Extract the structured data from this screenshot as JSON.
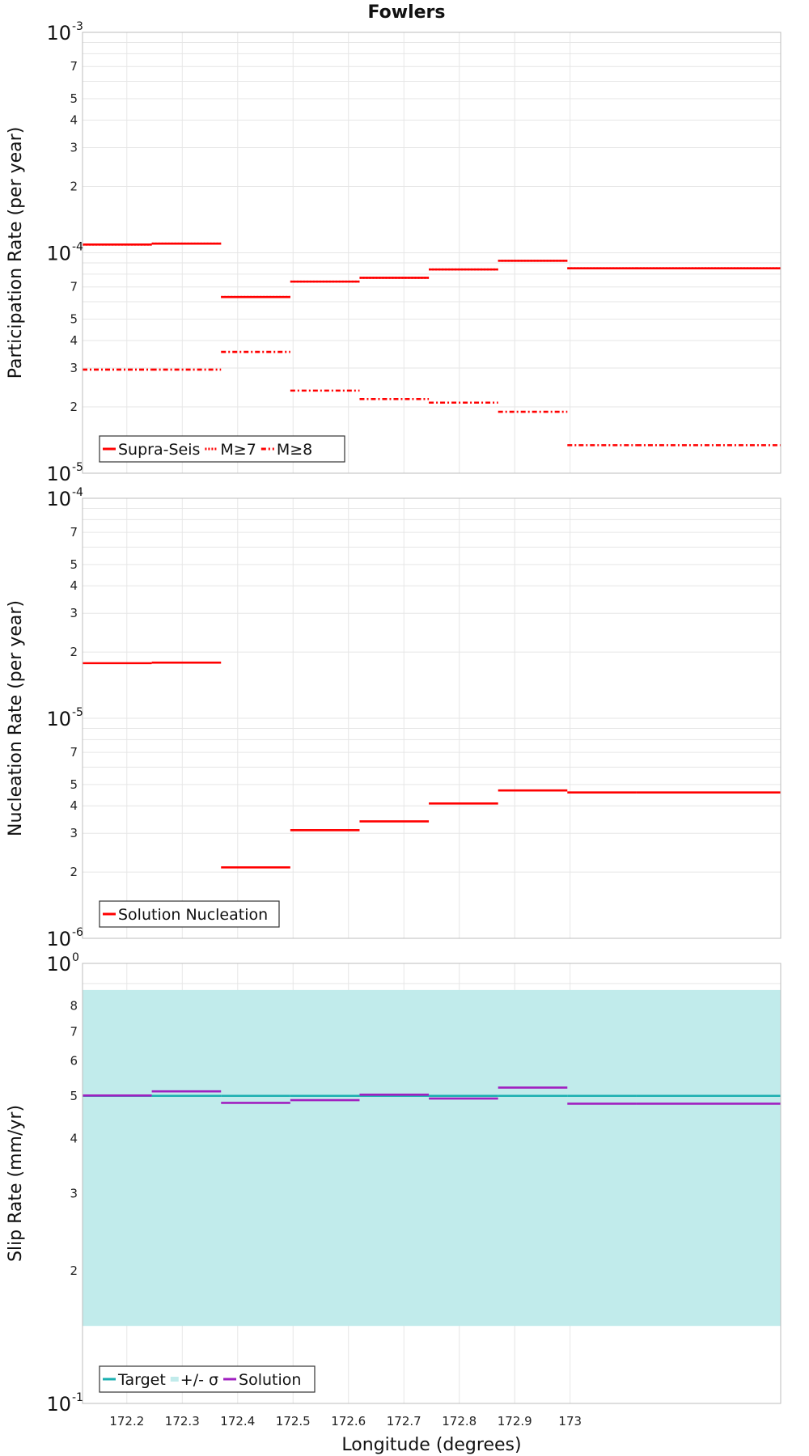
{
  "chart_data": [
    {
      "type": "line",
      "title": "Fowlers",
      "xlabel": "Longitude (degrees)",
      "ylabel": "Participation Rate (per year)",
      "yscale": "log",
      "ylim": [
        1e-05,
        0.001
      ],
      "xlim": [
        172.12,
        173.38
      ],
      "x_edges": [
        172.12,
        172.245,
        172.37,
        172.495,
        172.62,
        172.745,
        172.87,
        172.995,
        173.12,
        173.38
      ],
      "series": [
        {
          "name": "Supra-Seis",
          "style": "solid",
          "color": "#ff0000",
          "values": [
            0.000109,
            0.00011,
            6.3e-05,
            7.4e-05,
            7.7e-05,
            8.4e-05,
            9.2e-05,
            8.5e-05,
            8.5e-05
          ]
        },
        {
          "name": "M≥7",
          "style": "dotted",
          "color": "#ff0000",
          "values": [
            0.000109,
            0.00011,
            6.3e-05,
            7.4e-05,
            7.7e-05,
            8.4e-05,
            9.2e-05,
            8.5e-05,
            8.5e-05
          ]
        },
        {
          "name": "M≥8",
          "style": "dashdot",
          "color": "#ff0000",
          "values": [
            2.95e-05,
            2.95e-05,
            3.55e-05,
            2.37e-05,
            2.17e-05,
            2.09e-05,
            1.9e-05,
            1.34e-05,
            1.34e-05
          ]
        }
      ],
      "yticks_major": [
        {
          "value": 0.001,
          "mantissa": "10",
          "exp": "-3"
        },
        {
          "value": 0.0001,
          "mantissa": "10",
          "exp": "-4"
        },
        {
          "value": 1e-05,
          "mantissa": "10",
          "exp": "-5"
        }
      ],
      "yticks_minor_labels": [
        "7",
        "5",
        "4",
        "3",
        "2"
      ],
      "legend": "bottom-left"
    },
    {
      "type": "line",
      "ylabel": "Nucleation Rate (per year)",
      "yscale": "log",
      "ylim": [
        1e-06,
        0.0001
      ],
      "x_edges": [
        172.12,
        172.245,
        172.37,
        172.495,
        172.62,
        172.745,
        172.87,
        172.995,
        173.12,
        173.38
      ],
      "series": [
        {
          "name": "Solution Nucleation",
          "style": "solid",
          "color": "#ff0000",
          "values": [
            1.78e-05,
            1.79e-05,
            2.1e-06,
            3.1e-06,
            3.4e-06,
            4.1e-06,
            4.7e-06,
            4.6e-06,
            4.6e-06
          ]
        }
      ],
      "yticks_major": [
        {
          "value": 0.0001,
          "mantissa": "10",
          "exp": "-4"
        },
        {
          "value": 1e-05,
          "mantissa": "10",
          "exp": "-5"
        },
        {
          "value": 1e-06,
          "mantissa": "10",
          "exp": "-6"
        }
      ],
      "yticks_minor_labels": [
        "7",
        "5",
        "4",
        "3",
        "2"
      ],
      "legend": "bottom-left"
    },
    {
      "type": "line",
      "ylabel": "Slip Rate (mm/yr)",
      "xlabel": "Longitude (degrees)",
      "yscale": "log",
      "ylim": [
        0.1,
        1.0
      ],
      "x_edges": [
        172.12,
        172.245,
        172.37,
        172.495,
        172.62,
        172.745,
        172.87,
        172.995,
        173.12,
        173.38
      ],
      "band": {
        "name": "+/- σ",
        "low": 0.15,
        "high": 0.87,
        "color": "#c1ebeb"
      },
      "series": [
        {
          "name": "Target",
          "style": "solid",
          "color": "#1aafb0",
          "values": [
            0.5,
            0.5,
            0.5,
            0.5,
            0.5,
            0.5,
            0.5,
            0.5,
            0.5
          ]
        },
        {
          "name": "Solution",
          "style": "solid",
          "color": "#a020c0",
          "values": [
            0.501,
            0.512,
            0.482,
            0.489,
            0.503,
            0.493,
            0.522,
            0.48,
            0.48
          ]
        }
      ],
      "yticks_major": [
        {
          "value": 1.0,
          "mantissa": "10",
          "exp": "0"
        },
        {
          "value": 0.1,
          "mantissa": "10",
          "exp": "-1"
        }
      ],
      "yticks_minor_labels": [
        "8",
        "7",
        "6",
        "5",
        "4",
        "3",
        "2"
      ],
      "legend": "bottom-left"
    }
  ],
  "x_tick_labels": [
    "172.2",
    "172.3",
    "172.4",
    "172.5",
    "172.6",
    "172.7",
    "172.8",
    "172.9",
    "173"
  ]
}
